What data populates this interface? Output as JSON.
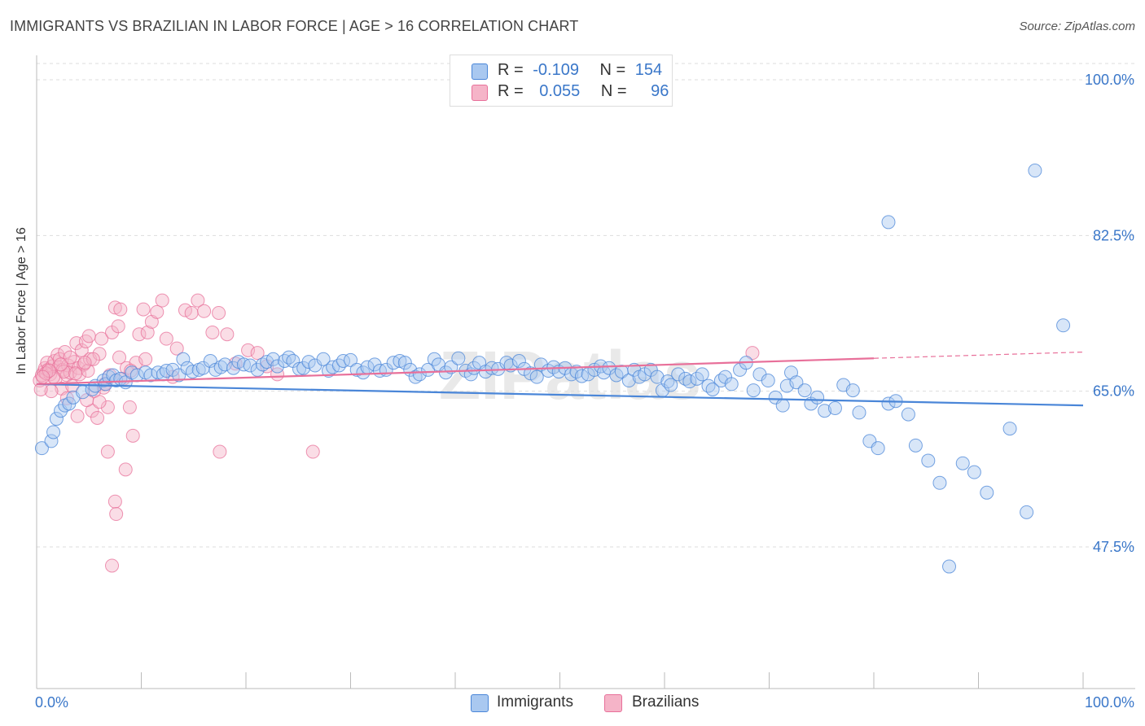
{
  "title": "IMMIGRANTS VS BRAZILIAN IN LABOR FORCE | AGE > 16 CORRELATION CHART",
  "source": "Source: ZipAtlas.com",
  "watermark": "ZIPatlas",
  "legend": {
    "rows": [
      {
        "r_label": "R =",
        "r_value": "-0.109",
        "n_label": "N =",
        "n_value": "154"
      },
      {
        "r_label": "R =",
        "r_value": "0.055",
        "n_label": "N =",
        "n_value": "96"
      }
    ]
  },
  "bottom_legend": [
    "Immigrants",
    "Brazilians"
  ],
  "colors": {
    "immigrants": "#4a86d8",
    "brazilians": "#e8709a",
    "immigrants_fill": "#a9c8f0",
    "brazilians_fill": "#f5b4c8"
  },
  "chart_data": {
    "type": "scatter",
    "title": "IMMIGRANTS VS BRAZILIAN IN LABOR FORCE | AGE > 16 CORRELATION CHART",
    "xlabel": "",
    "ylabel": "In Labor Force | Age > 16",
    "xlim": [
      0,
      100
    ],
    "ylim": [
      30,
      102
    ],
    "x_tick_labels": [
      "0.0%",
      "100.0%"
    ],
    "y_ticks": [
      47.5,
      65.0,
      82.5,
      100.0
    ],
    "y_tick_labels": [
      "47.5%",
      "65.0%",
      "82.5%",
      "100.0%"
    ],
    "grid": true,
    "series": [
      {
        "name": "Immigrants",
        "trend": {
          "x": [
            0,
            100
          ],
          "y": [
            65.8,
            63.4
          ]
        },
        "points": [
          [
            0.5,
            58.6
          ],
          [
            1.4,
            59.4
          ],
          [
            1.6,
            60.4
          ],
          [
            1.9,
            61.9
          ],
          [
            2.3,
            62.8
          ],
          [
            2.7,
            63.4
          ],
          [
            3.1,
            63.6
          ],
          [
            3.5,
            64.3
          ],
          [
            4.4,
            64.9
          ],
          [
            5.3,
            65.2
          ],
          [
            5.6,
            65.6
          ],
          [
            6.4,
            66.2
          ],
          [
            6.6,
            65.8
          ],
          [
            6.9,
            66.6
          ],
          [
            7.3,
            66.8
          ],
          [
            7.6,
            66.2
          ],
          [
            8.0,
            66.4
          ],
          [
            8.5,
            66.0
          ],
          [
            9.1,
            67.1
          ],
          [
            9.6,
            66.8
          ],
          [
            10.4,
            67.1
          ],
          [
            10.9,
            66.8
          ],
          [
            11.6,
            67.1
          ],
          [
            12.1,
            66.9
          ],
          [
            12.4,
            67.3
          ],
          [
            13.0,
            67.4
          ],
          [
            13.6,
            66.8
          ],
          [
            14.0,
            68.6
          ],
          [
            14.4,
            67.6
          ],
          [
            14.9,
            67.2
          ],
          [
            15.5,
            67.4
          ],
          [
            15.9,
            67.6
          ],
          [
            16.6,
            68.4
          ],
          [
            17.1,
            67.4
          ],
          [
            17.6,
            67.7
          ],
          [
            18.0,
            68.0
          ],
          [
            18.8,
            67.6
          ],
          [
            19.3,
            68.3
          ],
          [
            19.8,
            68.0
          ],
          [
            20.4,
            67.9
          ],
          [
            21.1,
            67.4
          ],
          [
            21.6,
            68.0
          ],
          [
            22.0,
            68.3
          ],
          [
            22.6,
            68.6
          ],
          [
            23.0,
            67.8
          ],
          [
            23.7,
            68.4
          ],
          [
            24.1,
            68.8
          ],
          [
            24.5,
            68.4
          ],
          [
            25.1,
            67.5
          ],
          [
            25.5,
            67.6
          ],
          [
            26.0,
            68.3
          ],
          [
            26.6,
            67.9
          ],
          [
            27.4,
            68.6
          ],
          [
            27.9,
            67.3
          ],
          [
            28.3,
            67.7
          ],
          [
            28.9,
            67.9
          ],
          [
            29.3,
            68.4
          ],
          [
            30.0,
            68.5
          ],
          [
            30.6,
            67.4
          ],
          [
            31.2,
            67.1
          ],
          [
            31.6,
            67.7
          ],
          [
            32.3,
            68.0
          ],
          [
            32.8,
            67.3
          ],
          [
            33.4,
            67.4
          ],
          [
            34.1,
            68.2
          ],
          [
            34.7,
            68.4
          ],
          [
            35.2,
            68.2
          ],
          [
            35.7,
            67.4
          ],
          [
            36.2,
            66.6
          ],
          [
            36.6,
            66.9
          ],
          [
            37.4,
            67.4
          ],
          [
            38.0,
            68.6
          ],
          [
            38.4,
            68.0
          ],
          [
            39.1,
            67.1
          ],
          [
            39.6,
            67.7
          ],
          [
            40.3,
            68.7
          ],
          [
            41.0,
            67.3
          ],
          [
            41.5,
            66.9
          ],
          [
            41.8,
            67.6
          ],
          [
            42.3,
            68.2
          ],
          [
            42.9,
            67.2
          ],
          [
            43.5,
            67.6
          ],
          [
            44.1,
            67.5
          ],
          [
            44.9,
            68.2
          ],
          [
            45.3,
            67.9
          ],
          [
            46.1,
            68.4
          ],
          [
            46.6,
            67.5
          ],
          [
            47.2,
            67.0
          ],
          [
            47.8,
            66.6
          ],
          [
            48.2,
            68.0
          ],
          [
            48.9,
            67.3
          ],
          [
            49.4,
            67.7
          ],
          [
            49.9,
            67.2
          ],
          [
            50.5,
            67.6
          ],
          [
            51.1,
            66.9
          ],
          [
            51.6,
            67.2
          ],
          [
            52.1,
            66.7
          ],
          [
            52.7,
            66.9
          ],
          [
            53.3,
            67.4
          ],
          [
            53.9,
            67.8
          ],
          [
            54.2,
            67.1
          ],
          [
            54.7,
            67.6
          ],
          [
            55.4,
            66.8
          ],
          [
            55.9,
            67.2
          ],
          [
            56.6,
            66.2
          ],
          [
            57.1,
            67.4
          ],
          [
            57.6,
            66.6
          ],
          [
            58.1,
            66.9
          ],
          [
            58.7,
            67.4
          ],
          [
            59.3,
            66.6
          ],
          [
            59.8,
            65.1
          ],
          [
            60.3,
            66.1
          ],
          [
            60.6,
            65.7
          ],
          [
            61.3,
            66.9
          ],
          [
            62.0,
            66.4
          ],
          [
            62.4,
            66.1
          ],
          [
            63.1,
            66.4
          ],
          [
            63.6,
            66.9
          ],
          [
            64.2,
            65.6
          ],
          [
            64.6,
            65.2
          ],
          [
            65.4,
            66.2
          ],
          [
            65.8,
            66.6
          ],
          [
            66.4,
            65.8
          ],
          [
            67.2,
            67.4
          ],
          [
            67.8,
            68.2
          ],
          [
            68.5,
            65.1
          ],
          [
            69.1,
            66.9
          ],
          [
            69.9,
            66.2
          ],
          [
            70.6,
            64.3
          ],
          [
            71.3,
            63.4
          ],
          [
            71.7,
            65.6
          ],
          [
            72.1,
            67.1
          ],
          [
            72.6,
            66.0
          ],
          [
            73.4,
            65.1
          ],
          [
            74.0,
            63.6
          ],
          [
            74.6,
            64.3
          ],
          [
            75.3,
            62.8
          ],
          [
            76.3,
            63.1
          ],
          [
            77.1,
            65.7
          ],
          [
            78.0,
            65.1
          ],
          [
            78.6,
            62.6
          ],
          [
            79.6,
            59.4
          ],
          [
            80.4,
            58.6
          ],
          [
            81.4,
            63.6
          ],
          [
            82.1,
            63.9
          ],
          [
            83.3,
            62.4
          ],
          [
            84.0,
            58.9
          ],
          [
            85.2,
            57.2
          ],
          [
            86.3,
            54.7
          ],
          [
            87.2,
            45.3
          ],
          [
            88.5,
            56.9
          ],
          [
            89.6,
            55.9
          ],
          [
            90.8,
            53.6
          ],
          [
            93.0,
            60.8
          ],
          [
            94.6,
            51.4
          ],
          [
            98.1,
            72.4
          ],
          [
            95.4,
            89.8
          ],
          [
            81.4,
            84.0
          ]
        ]
      },
      {
        "name": "Brazilians",
        "trend": {
          "x": [
            0,
            80
          ],
          "y": [
            65.8,
            68.7
          ],
          "dashed_to": [
            100,
            69.4
          ]
        },
        "points": [
          [
            0.3,
            66.2
          ],
          [
            0.5,
            66.8
          ],
          [
            0.7,
            67.2
          ],
          [
            0.8,
            67.6
          ],
          [
            1.0,
            68.2
          ],
          [
            1.1,
            67.4
          ],
          [
            1.3,
            66.9
          ],
          [
            1.5,
            67.8
          ],
          [
            1.7,
            68.4
          ],
          [
            1.8,
            66.4
          ],
          [
            2.0,
            69.1
          ],
          [
            2.1,
            67.7
          ],
          [
            2.2,
            68.6
          ],
          [
            2.4,
            65.3
          ],
          [
            2.5,
            67.4
          ],
          [
            2.7,
            69.4
          ],
          [
            2.9,
            66.8
          ],
          [
            3.0,
            67.9
          ],
          [
            3.2,
            67.1
          ],
          [
            3.4,
            65.6
          ],
          [
            3.6,
            68.3
          ],
          [
            3.8,
            70.4
          ],
          [
            4.0,
            67.6
          ],
          [
            4.1,
            66.9
          ],
          [
            4.3,
            69.6
          ],
          [
            4.5,
            68.0
          ],
          [
            4.7,
            70.6
          ],
          [
            4.9,
            67.3
          ],
          [
            5.1,
            68.6
          ],
          [
            5.3,
            62.8
          ],
          [
            5.5,
            65.0
          ],
          [
            5.8,
            62.0
          ],
          [
            6.0,
            69.2
          ],
          [
            6.2,
            70.9
          ],
          [
            6.5,
            65.8
          ],
          [
            6.8,
            63.2
          ],
          [
            7.0,
            66.8
          ],
          [
            7.2,
            71.6
          ],
          [
            7.5,
            74.4
          ],
          [
            7.8,
            72.3
          ],
          [
            8.0,
            74.2
          ],
          [
            8.3,
            66.4
          ],
          [
            8.6,
            67.6
          ],
          [
            8.9,
            63.2
          ],
          [
            9.2,
            60.0
          ],
          [
            9.5,
            68.2
          ],
          [
            9.8,
            71.4
          ],
          [
            10.2,
            74.2
          ],
          [
            10.6,
            71.6
          ],
          [
            11.0,
            72.8
          ],
          [
            11.5,
            73.9
          ],
          [
            12.0,
            75.2
          ],
          [
            12.4,
            70.9
          ],
          [
            13.0,
            66.6
          ],
          [
            13.4,
            69.8
          ],
          [
            14.2,
            74.1
          ],
          [
            14.8,
            73.8
          ],
          [
            15.4,
            75.2
          ],
          [
            16.0,
            74.0
          ],
          [
            16.8,
            71.6
          ],
          [
            17.4,
            73.8
          ],
          [
            18.2,
            71.4
          ],
          [
            19.0,
            68.1
          ],
          [
            20.2,
            69.6
          ],
          [
            21.1,
            69.3
          ],
          [
            22.0,
            67.8
          ],
          [
            23.0,
            66.9
          ],
          [
            6.8,
            58.2
          ],
          [
            8.5,
            56.2
          ],
          [
            7.5,
            52.6
          ],
          [
            7.6,
            51.2
          ],
          [
            7.2,
            45.4
          ],
          [
            17.5,
            58.2
          ],
          [
            26.4,
            58.2
          ],
          [
            68.4,
            69.3
          ],
          [
            5.4,
            68.6
          ],
          [
            3.2,
            68.8
          ],
          [
            2.6,
            67.2
          ],
          [
            1.6,
            66.6
          ],
          [
            0.9,
            67.0
          ],
          [
            4.6,
            68.2
          ],
          [
            5.0,
            71.2
          ],
          [
            6.4,
            65.4
          ],
          [
            7.9,
            68.8
          ],
          [
            9.0,
            67.3
          ],
          [
            10.4,
            68.6
          ],
          [
            3.7,
            67.0
          ],
          [
            2.3,
            68.0
          ],
          [
            1.2,
            67.3
          ],
          [
            0.6,
            66.6
          ],
          [
            4.8,
            64.0
          ],
          [
            6.0,
            63.8
          ],
          [
            3.9,
            62.2
          ],
          [
            2.9,
            64.2
          ],
          [
            1.4,
            65.0
          ],
          [
            0.4,
            65.2
          ]
        ]
      }
    ]
  }
}
